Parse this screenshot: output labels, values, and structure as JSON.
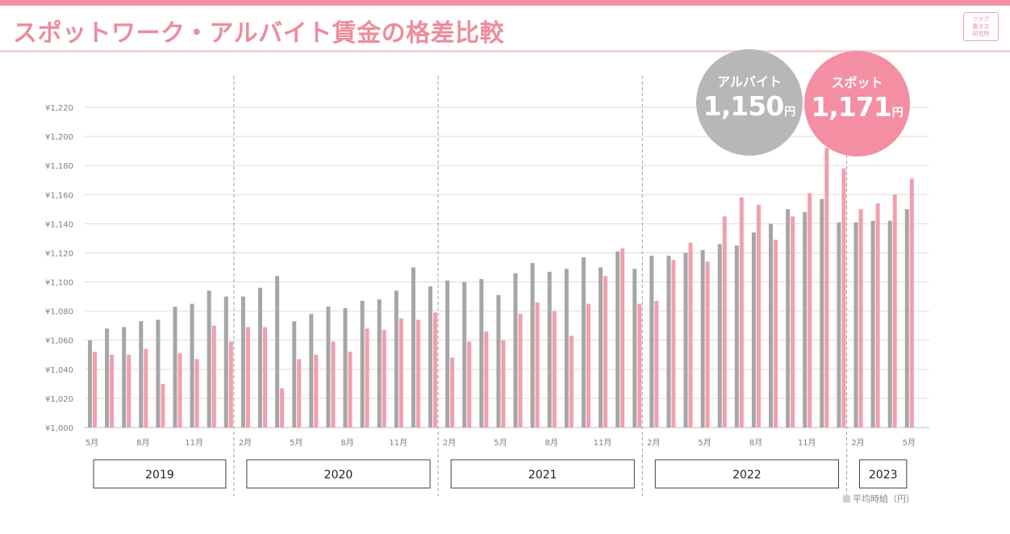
{
  "header": {
    "title": "スポットワーク・アルバイト賃金の格差比較",
    "logo_lines": [
      "ツナグ",
      "働き方",
      "研究所"
    ]
  },
  "colors": {
    "accent": "#f48fa3",
    "spot": "#f19fad",
    "arubaito": "#a6a6a6"
  },
  "callouts": {
    "arubaito": {
      "label": "アルバイト",
      "value": "1,150",
      "unit": "円"
    },
    "spot": {
      "label": "スポット",
      "value": "1,171",
      "unit": "円"
    }
  },
  "legend": {
    "label": "平均時給（円）"
  },
  "chart_data": {
    "type": "bar",
    "ylim": [
      1000,
      1220
    ],
    "yticks": [
      1000,
      1020,
      1040,
      1060,
      1080,
      1100,
      1120,
      1140,
      1160,
      1180,
      1200,
      1220
    ],
    "ytick_labels": [
      "¥1,000",
      "¥1,020",
      "¥1,040",
      "¥1,060",
      "¥1,080",
      "¥1,100",
      "¥1,120",
      "¥1,140",
      "¥1,160",
      "¥1,180",
      "¥1,200",
      "¥1,220"
    ],
    "grid": true,
    "categories": [
      "2019-05",
      "2019-06",
      "2019-07",
      "2019-08",
      "2019-09",
      "2019-10",
      "2019-11",
      "2019-12",
      "2020-01",
      "2020-02",
      "2020-03",
      "2020-04",
      "2020-05",
      "2020-06",
      "2020-07",
      "2020-08",
      "2020-09",
      "2020-10",
      "2020-11",
      "2020-12",
      "2021-01",
      "2021-02",
      "2021-03",
      "2021-04",
      "2021-05",
      "2021-06",
      "2021-07",
      "2021-08",
      "2021-09",
      "2021-10",
      "2021-11",
      "2021-12",
      "2022-01",
      "2022-02",
      "2022-03",
      "2022-04",
      "2022-05",
      "2022-06",
      "2022-07",
      "2022-08",
      "2022-09",
      "2022-10",
      "2022-11",
      "2022-12",
      "2023-01",
      "2023-02",
      "2023-03",
      "2023-04",
      "2023-05"
    ],
    "tick_labels": [
      "5月",
      "",
      "",
      "8月",
      "",
      "",
      "11月",
      "",
      "",
      "2月",
      "",
      "",
      "5月",
      "",
      "",
      "8月",
      "",
      "",
      "11月",
      "",
      "",
      "2月",
      "",
      "",
      "5月",
      "",
      "",
      "8月",
      "",
      "",
      "11月",
      "",
      "",
      "2月",
      "",
      "",
      "5月",
      "",
      "",
      "8月",
      "",
      "",
      "11月",
      "",
      "",
      "2月",
      "",
      "",
      "5月"
    ],
    "series": [
      {
        "color": "#a6a6a6",
        "values": [
          1060,
          1068,
          1069,
          1073,
          1074,
          1083,
          1085,
          1094,
          1090,
          1090,
          1096,
          1104,
          1073,
          1078,
          1083,
          1082,
          1087,
          1088,
          1094,
          1110,
          1097,
          1101,
          1100,
          1102,
          1091,
          1106,
          1113,
          1107,
          1109,
          1117,
          1110,
          1121,
          1109,
          1118,
          1118,
          1120,
          1122,
          1126,
          1125,
          1134,
          1140,
          1150,
          1148,
          1157,
          1141,
          1141,
          1142,
          1142,
          1150
        ]
      },
      {
        "color": "#f19fad",
        "values": [
          1052,
          1050,
          1050,
          1054,
          1030,
          1051,
          1047,
          1070,
          1059,
          1069,
          1069,
          1027,
          1047,
          1050,
          1059,
          1052,
          1068,
          1067,
          1075,
          1074,
          1079,
          1048,
          1059,
          1066,
          1060,
          1078,
          1086,
          1080,
          1063,
          1085,
          1104,
          1123,
          1085,
          1087,
          1115,
          1127,
          1114,
          1145,
          1158,
          1153,
          1129,
          1145,
          1161,
          1192,
          1178,
          1150,
          1154,
          1160,
          1171
        ]
      }
    ],
    "year_groups": [
      {
        "label": "2019",
        "start": 0,
        "end": 8
      },
      {
        "label": "2020",
        "start": 9,
        "end": 20
      },
      {
        "label": "2021",
        "start": 21,
        "end": 32
      },
      {
        "label": "2022",
        "start": 33,
        "end": 44
      },
      {
        "label": "2023",
        "start": 45,
        "end": 48
      }
    ],
    "year_dividers_after": [
      8,
      20,
      32,
      44
    ]
  }
}
